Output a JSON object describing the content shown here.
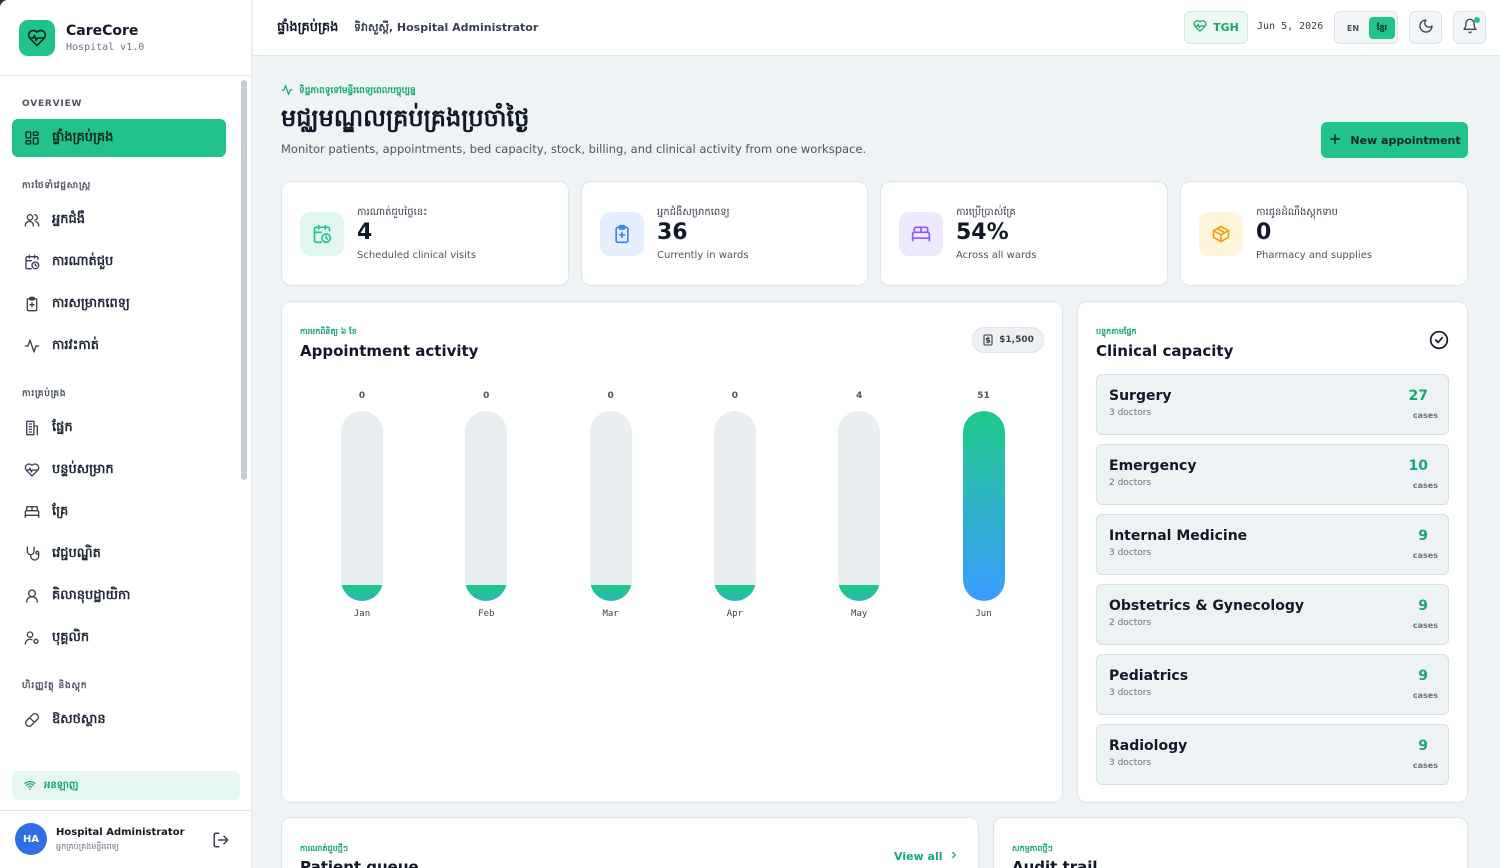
{
  "brand": {
    "name": "CareCore",
    "version": "Hospital v1.0"
  },
  "sidebar": {
    "sections": [
      {
        "title": "OVERVIEW"
      },
      {
        "title": "ការថែទាំវេជ្ជសាស្ត្រ"
      },
      {
        "title": "ការគ្រប់គ្រង"
      },
      {
        "title": "ហិរញ្ញវត្ថុ និងស្តុក"
      }
    ],
    "items": [
      {
        "label": "ផ្ទាំងគ្រប់គ្រង",
        "icon": "dashboard-icon",
        "active": true
      },
      {
        "label": "អ្នកជំងឺ",
        "icon": "users-icon"
      },
      {
        "label": "ការណាត់ជួប",
        "icon": "calendar-clock-icon"
      },
      {
        "label": "ការសម្រាកពេទ្យ",
        "icon": "clipboard-plus-icon"
      },
      {
        "label": "ការវះកាត់",
        "icon": "activity-icon"
      },
      {
        "label": "ផ្នែក",
        "icon": "building-icon"
      },
      {
        "label": "បន្ទប់សម្រាក",
        "icon": "heart-icon"
      },
      {
        "label": "គ្រែ",
        "icon": "bed-icon"
      },
      {
        "label": "វេជ្ជបណ្ឌិត",
        "icon": "stethoscope-icon"
      },
      {
        "label": "គិលានុបដ្ឋាយិកា",
        "icon": "user-icon"
      },
      {
        "label": "បុគ្គលិក",
        "icon": "user-cog-icon"
      },
      {
        "label": "ឱសថស្ថាន",
        "icon": "pill-icon"
      }
    ],
    "online_label": "អនឡាញ"
  },
  "user": {
    "initials": "HA",
    "name": "Hospital Administrator",
    "role": "អ្នកគ្រប់គ្រងមន្ទីរពេទ្យ"
  },
  "header": {
    "title": "ផ្ទាំងគ្រប់គ្រង",
    "subtitle": "ទិវាសួស្តី, Hospital Administrator",
    "hospital_code": "TGH",
    "date": "Jun 5, 2026",
    "lang_en": "EN",
    "lang_km": "ខ្មែរ"
  },
  "page": {
    "eyebrow": "ទិដ្ឋភាពទូទៅមន្ទីរពេទ្យពេលបច្ចុប្បន្ន",
    "title": "មជ្ឈមណ្ឌលគ្រប់គ្រងប្រចាំថ្ងៃ",
    "description": "Monitor patients, appointments, bed capacity, stock, billing, and clinical activity from one workspace.",
    "new_button": "New appointment"
  },
  "stats": [
    {
      "label": "ការណាត់ជួបថ្ងៃនេះ",
      "value": "4",
      "note": "Scheduled clinical visits",
      "icon": "calendar-clock-icon",
      "color": "#22c38a",
      "bg": "#e3f6ee"
    },
    {
      "label": "អ្នកជំងឺសម្រាកពេទ្យ",
      "value": "36",
      "note": "Currently in wards",
      "icon": "clipboard-plus-icon",
      "color": "#3b82f6",
      "bg": "#e6efff"
    },
    {
      "label": "ការប្រើប្រាស់គ្រែ",
      "value": "54%",
      "note": "Across all wards",
      "icon": "bed-icon",
      "color": "#8b5cf6",
      "bg": "#efe9ff"
    },
    {
      "label": "ការជូនដំណឹងស្តុកទាប",
      "value": "0",
      "note": "Pharmacy and supplies",
      "icon": "package-icon",
      "color": "#f59e0b",
      "bg": "#fff4dc"
    }
  ],
  "activity": {
    "kicker": "ការមកពិនិត្យ ៦ ខែ",
    "title": "Appointment activity",
    "amount": "$1,500"
  },
  "chart_data": {
    "type": "bar",
    "title": "Appointment activity",
    "categories": [
      "Jan",
      "Feb",
      "Mar",
      "Apr",
      "May",
      "Jun"
    ],
    "values": [
      0,
      0,
      0,
      0,
      4,
      51
    ],
    "ylim": [
      0,
      51
    ],
    "colors": {
      "start": "#1fc98a",
      "end": "#3b9cff",
      "track": "#e9eef1"
    }
  },
  "capacity": {
    "kicker": "បន្ទុកតាមផ្នែក",
    "title": "Clinical capacity",
    "unit": "cases",
    "departments": [
      {
        "name": "Surgery",
        "doctors": "3 doctors",
        "count": "27"
      },
      {
        "name": "Emergency",
        "doctors": "2 doctors",
        "count": "10"
      },
      {
        "name": "Internal Medicine",
        "doctors": "3 doctors",
        "count": "9"
      },
      {
        "name": "Obstetrics & Gynecology",
        "doctors": "2 doctors",
        "count": "9"
      },
      {
        "name": "Pediatrics",
        "doctors": "3 doctors",
        "count": "9"
      },
      {
        "name": "Radiology",
        "doctors": "3 doctors",
        "count": "9"
      }
    ]
  },
  "queue": {
    "kicker": "ការណាត់ជួបថ្មីៗ",
    "title": "Patient queue",
    "view_all": "View all"
  },
  "audit": {
    "kicker": "សកម្មភាពថ្មីៗ",
    "title": "Audit trail"
  },
  "colors": {
    "accent": "#22c38a",
    "accent_text": "#17a773",
    "background": "#eef3f5"
  }
}
